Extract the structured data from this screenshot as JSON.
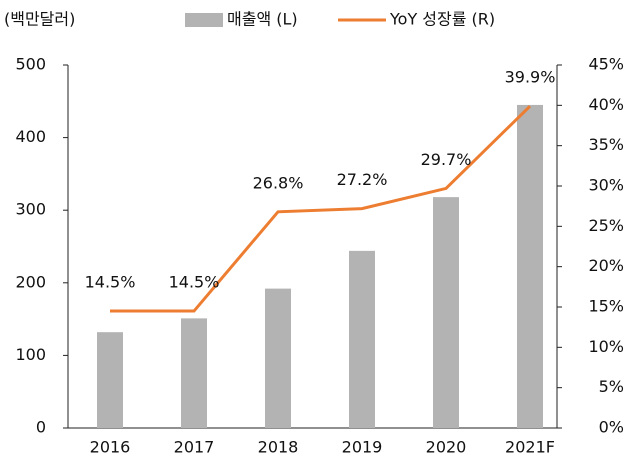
{
  "chart_data": {
    "type": "bar-line",
    "unit_label": "(백만달러)",
    "categories": [
      "2016",
      "2017",
      "2018",
      "2019",
      "2020",
      "2021F"
    ],
    "series": [
      {
        "name": "매출액 (L)",
        "type": "bar",
        "color": "#b3b3b3",
        "values": [
          132,
          151,
          192,
          244,
          318,
          445
        ]
      },
      {
        "name": "YoY 성장률 (R)",
        "type": "line",
        "axis": "y2",
        "color": "#ed7d31",
        "values": [
          14.5,
          14.5,
          26.8,
          27.2,
          29.7,
          39.9
        ],
        "value_labels": [
          "14.5%",
          "14.5%",
          "26.8%",
          "27.2%",
          "29.7%",
          "39.9%"
        ]
      }
    ],
    "ylim": [
      0,
      500
    ],
    "yticks": [
      0,
      100,
      200,
      300,
      400,
      500
    ],
    "y2lim": [
      0,
      45
    ],
    "y2ticks": [
      {
        "value": 0,
        "label": "0%"
      },
      {
        "value": 5,
        "label": "5%"
      },
      {
        "value": 10,
        "label": "10%"
      },
      {
        "value": 15,
        "label": "15%"
      },
      {
        "value": 20,
        "label": "20%"
      },
      {
        "value": 25,
        "label": "25%"
      },
      {
        "value": 30,
        "label": "30%"
      },
      {
        "value": 35,
        "label": "35%"
      },
      {
        "value": 40,
        "label": "40%"
      },
      {
        "value": 45,
        "label": "45%"
      }
    ],
    "legend": "top"
  }
}
